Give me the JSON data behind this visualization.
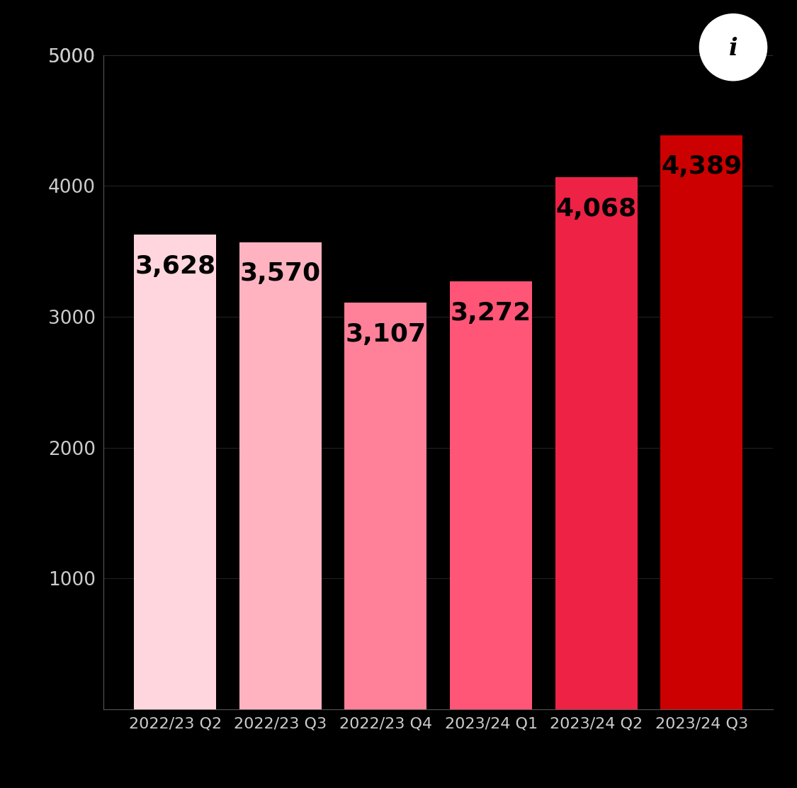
{
  "categories": [
    "2022/23 Q2",
    "2022/23 Q3",
    "2022/23 Q4",
    "2023/24 Q1",
    "2023/24 Q2",
    "2023/24 Q3"
  ],
  "values": [
    3628,
    3570,
    3107,
    3272,
    4068,
    4389
  ],
  "labels": [
    "3,628",
    "3,570",
    "3,107",
    "3,272",
    "4,068",
    "4,389"
  ],
  "bar_colors": [
    "#FFD6DE",
    "#FFB3C1",
    "#FF8099",
    "#FF5577",
    "#EE2244",
    "#CC0000"
  ],
  "background_color": "#000000",
  "text_color": "#000000",
  "axis_color": "#555555",
  "tick_color": "#cccccc",
  "ylim": [
    0,
    5000
  ],
  "yticks": [
    1000,
    2000,
    3000,
    4000,
    5000
  ],
  "ytick_top": 5000,
  "label_fontsize": 26,
  "tick_fontsize": 19,
  "xtick_fontsize": 16,
  "bar_width": 0.78
}
